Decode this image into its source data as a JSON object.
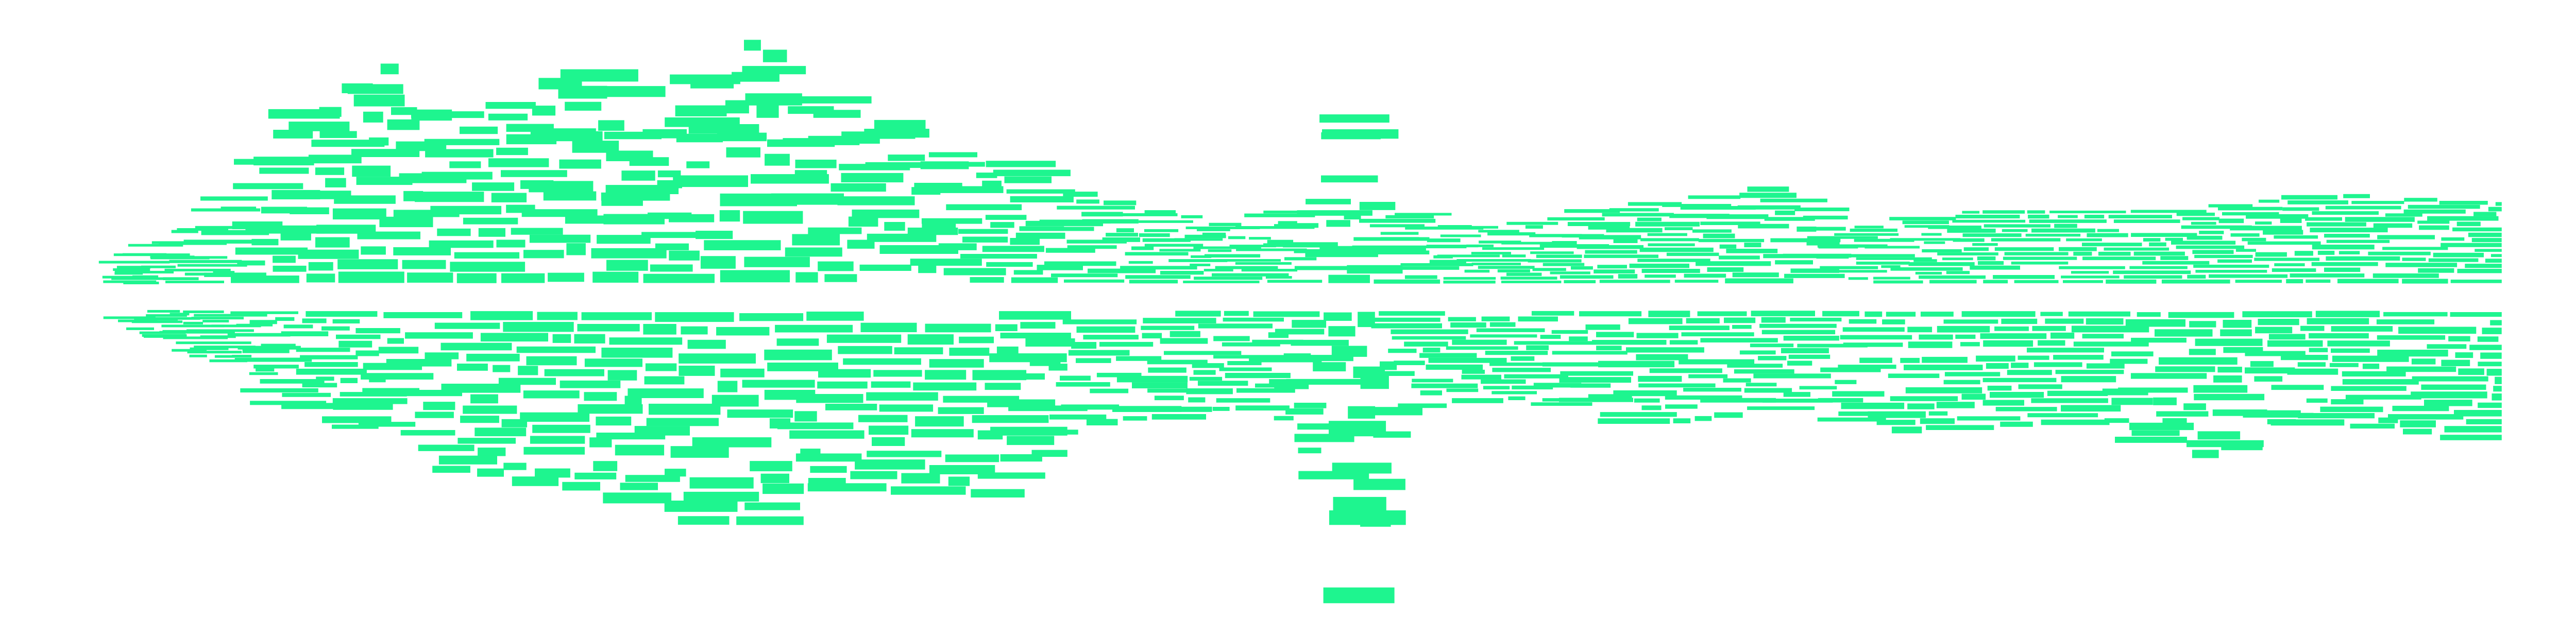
{
  "artwork": {
    "color": "#1ef58f"
  }
}
